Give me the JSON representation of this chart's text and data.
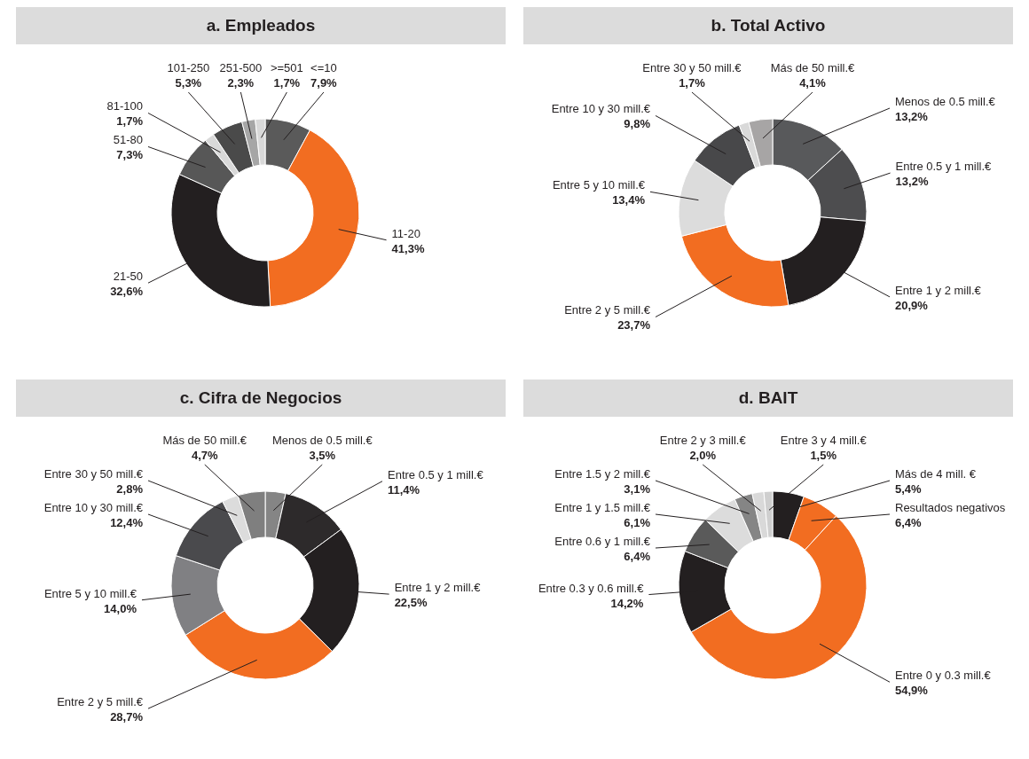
{
  "chart_data": [
    {
      "type": "donut",
      "title": "a. Empleados",
      "categories": [
        "<=10",
        "11-20",
        "21-50",
        "51-80",
        "81-100",
        "101-250",
        "251-500",
        ">=501"
      ],
      "values": [
        7.9,
        41.3,
        32.6,
        7.3,
        1.7,
        5.3,
        2.3,
        1.7
      ],
      "value_labels": [
        "7,9%",
        "41,3%",
        "32,6%",
        "7,3%",
        "1,7%",
        "5,3%",
        "2,3%",
        "1,7%"
      ],
      "colors": [
        "#5a5a5a",
        "#f26d21",
        "#231f20",
        "#575757",
        "#d9d9d9",
        "#4a4a4a",
        "#a6a6a6",
        "#d9d9d9"
      ]
    },
    {
      "type": "donut",
      "title": "b. Total Activo",
      "categories": [
        "Menos de 0.5 mill.€",
        "Entre 0.5 y 1 mill.€",
        "Entre 1 y 2 mill.€",
        "Entre 2 y 5 mill.€",
        "Entre 5 y 10 mill.€",
        "Entre 10 y 30 mill.€",
        "Entre 30 y 50 mill.€",
        "Más de 50 mill.€"
      ],
      "values": [
        13.2,
        13.2,
        20.9,
        23.7,
        13.4,
        9.8,
        1.7,
        4.1
      ],
      "value_labels": [
        "13,2%",
        "13,2%",
        "20,9%",
        "23,7%",
        "13,4%",
        "9,8%",
        "1,7%",
        "4,1%"
      ],
      "colors": [
        "#58595b",
        "#4d4d4f",
        "#231f20",
        "#f26d21",
        "#dcdcdc",
        "#48484a",
        "#d9d9d9",
        "#a7a5a5"
      ]
    },
    {
      "type": "donut",
      "title": "c. Cifra de Negocios",
      "categories": [
        "Menos de 0.5 mill.€",
        "Entre 0.5 y 1 mill.€",
        "Entre 1 y 2 mill.€",
        "Entre 2 y 5 mill.€",
        "Entre 5 y 10 mill.€",
        "Entre 10 y 30 mill.€",
        "Entre 30 y 50 mill.€",
        "Más de 50 mill.€"
      ],
      "values": [
        3.5,
        11.4,
        22.5,
        28.7,
        14.0,
        12.4,
        2.8,
        4.7
      ],
      "value_labels": [
        "3,5%",
        "11,4%",
        "22,5%",
        "28,7%",
        "14,0%",
        "12,4%",
        "2,8%",
        "4,7%"
      ],
      "colors": [
        "#858585",
        "#2d2a2b",
        "#231f20",
        "#f26d21",
        "#808083",
        "#4a4a4d",
        "#dcdcdc",
        "#7f7f7f"
      ]
    },
    {
      "type": "donut",
      "title": "d. BAIT",
      "categories": [
        "Más de 4 mill. €",
        "Resultados negativos",
        "Entre 0 y 0.3 mill.€",
        "Entre 0.3 y 0.6 mill.€",
        "Entre 0.6 y 1 mill.€",
        "Entre 1 y 1.5 mill.€",
        "Entre 1.5 y 2 mill.€",
        "Entre 2 y 3 mill.€",
        "Entre 3 y 4 mill.€"
      ],
      "values": [
        5.4,
        6.4,
        54.9,
        14.2,
        6.4,
        6.1,
        3.1,
        2.0,
        1.5
      ],
      "value_labels": [
        "5,4%",
        "6,4%",
        "54,9%",
        "14,2%",
        "6,4%",
        "6,1%",
        "3,1%",
        "2,0%",
        "1,5%"
      ],
      "colors": [
        "#231f20",
        "#f26d21",
        "#f26d21",
        "#231f20",
        "#5a5a5a",
        "#dcdcdc",
        "#858585",
        "#d9d9d9",
        "#cfcfcf"
      ]
    }
  ]
}
